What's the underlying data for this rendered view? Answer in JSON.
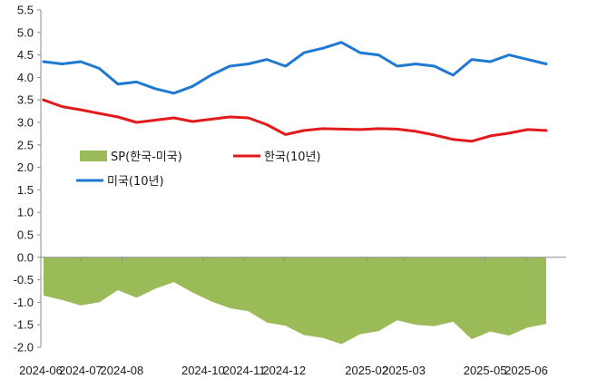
{
  "chart_data": {
    "type": "line",
    "title": "",
    "xlabel": "",
    "ylabel": "",
    "ylim": [
      -2.0,
      5.5
    ],
    "ytick_step": 0.5,
    "grid": false,
    "x_tick_labels": [
      "2024-06",
      "2024-07",
      "2024-08",
      "2024-10",
      "2024-11",
      "2024-12",
      "2025-02",
      "2025-03",
      "2025-05",
      "2025-06"
    ],
    "legend": {
      "placement": "center-left",
      "entries": [
        {
          "label": "SP(한국-미국)",
          "color": "#9bbb59",
          "kind": "area"
        },
        {
          "label": "한국(10년)",
          "color": "#e31a1c",
          "kind": "line"
        },
        {
          "label": "미국(10년)",
          "color": "#1f78d1",
          "kind": "line"
        }
      ]
    },
    "series": [
      {
        "name": "한국(10년)",
        "color": "#e31a1c",
        "x": [
          "2024-06-03",
          "2024-06-17",
          "2024-07-01",
          "2024-07-15",
          "2024-07-29",
          "2024-08-12",
          "2024-08-26",
          "2024-09-09",
          "2024-09-23",
          "2024-10-07",
          "2024-10-21",
          "2024-11-04",
          "2024-11-18",
          "2024-12-02",
          "2024-12-16",
          "2024-12-30",
          "2025-01-13",
          "2025-01-27",
          "2025-02-10",
          "2025-02-24",
          "2025-03-10",
          "2025-03-24",
          "2025-04-07",
          "2025-04-21",
          "2025-05-05",
          "2025-05-19",
          "2025-06-02",
          "2025-06-16"
        ],
        "values": [
          3.5,
          3.35,
          3.28,
          3.2,
          3.12,
          3.0,
          3.05,
          3.1,
          3.02,
          3.07,
          3.12,
          3.1,
          2.95,
          2.73,
          2.82,
          2.86,
          2.85,
          2.84,
          2.86,
          2.85,
          2.8,
          2.72,
          2.62,
          2.58,
          2.7,
          2.76,
          2.84,
          2.82
        ]
      },
      {
        "name": "미국(10년)",
        "color": "#1f78d1",
        "x": [
          "2024-06-03",
          "2024-06-17",
          "2024-07-01",
          "2024-07-15",
          "2024-07-29",
          "2024-08-12",
          "2024-08-26",
          "2024-09-09",
          "2024-09-23",
          "2024-10-07",
          "2024-10-21",
          "2024-11-04",
          "2024-11-18",
          "2024-12-02",
          "2024-12-16",
          "2024-12-30",
          "2025-01-13",
          "2025-01-27",
          "2025-02-10",
          "2025-02-24",
          "2025-03-10",
          "2025-03-24",
          "2025-04-07",
          "2025-04-21",
          "2025-05-05",
          "2025-05-19",
          "2025-06-02",
          "2025-06-16"
        ],
        "values": [
          4.35,
          4.3,
          4.35,
          4.2,
          3.85,
          3.9,
          3.75,
          3.65,
          3.8,
          4.05,
          4.25,
          4.3,
          4.4,
          4.25,
          4.55,
          4.65,
          4.78,
          4.55,
          4.5,
          4.25,
          4.3,
          4.25,
          4.05,
          4.4,
          4.35,
          4.5,
          4.4,
          4.3
        ]
      },
      {
        "name": "SP(한국-미국)",
        "color": "#9bbb59",
        "x": [
          "2024-06-03",
          "2024-06-17",
          "2024-07-01",
          "2024-07-15",
          "2024-07-29",
          "2024-08-12",
          "2024-08-26",
          "2024-09-09",
          "2024-09-23",
          "2024-10-07",
          "2024-10-21",
          "2024-11-04",
          "2024-11-18",
          "2024-12-02",
          "2024-12-16",
          "2024-12-30",
          "2025-01-13",
          "2025-01-27",
          "2025-02-10",
          "2025-02-24",
          "2025-03-10",
          "2025-03-24",
          "2025-04-07",
          "2025-04-21",
          "2025-05-05",
          "2025-05-19",
          "2025-06-02",
          "2025-06-16"
        ],
        "values": [
          -0.85,
          -0.95,
          -1.07,
          -1.0,
          -0.73,
          -0.9,
          -0.7,
          -0.55,
          -0.78,
          -0.98,
          -1.13,
          -1.2,
          -1.45,
          -1.52,
          -1.73,
          -1.79,
          -1.93,
          -1.71,
          -1.64,
          -1.4,
          -1.5,
          -1.53,
          -1.43,
          -1.82,
          -1.65,
          -1.74,
          -1.56,
          -1.48
        ]
      }
    ]
  }
}
